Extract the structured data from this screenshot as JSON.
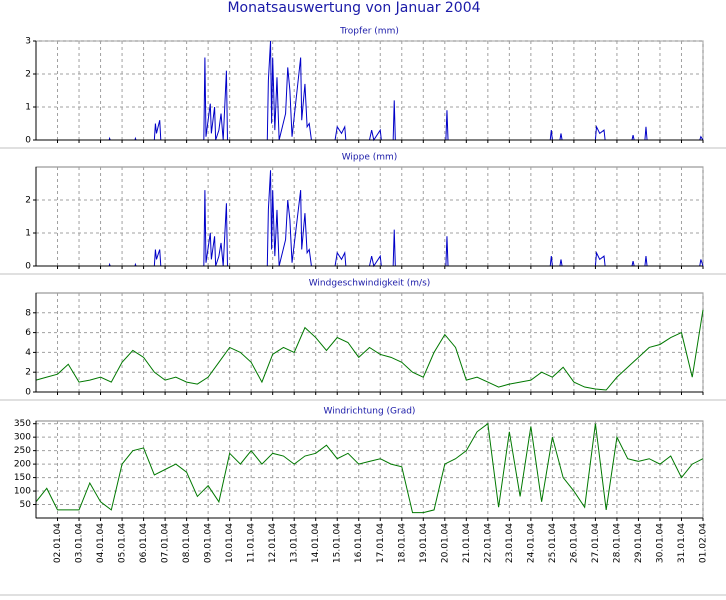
{
  "title": "Monatsauswertung von Januar 2004",
  "chart_data": [
    {
      "type": "line",
      "title": "Tropfer (mm)",
      "color": "#0000c8",
      "grid": true,
      "xlim": [
        1,
        32
      ],
      "xticks": [
        2,
        3,
        4,
        5,
        6,
        7,
        8,
        9,
        10,
        11,
        12,
        13,
        14,
        15,
        16,
        17,
        18,
        19,
        20,
        21,
        22,
        23,
        24,
        25,
        26,
        27,
        28,
        29,
        30,
        31,
        32
      ],
      "ylim": [
        0,
        3
      ],
      "yticks": [
        0,
        1,
        2,
        3
      ],
      "x": [
        1,
        4.4,
        4.42,
        4.45,
        5.6,
        5.62,
        5.65,
        6.5,
        6.55,
        6.6,
        6.75,
        6.8,
        8.8,
        8.85,
        8.9,
        9.1,
        9.15,
        9.3,
        9.35,
        9.5,
        9.6,
        9.7,
        9.85,
        9.9,
        11.75,
        11.8,
        11.9,
        11.95,
        12.0,
        12.1,
        12.2,
        12.3,
        12.6,
        12.7,
        12.8,
        12.9,
        13.3,
        13.35,
        13.5,
        13.6,
        13.7,
        13.8,
        14.9,
        15,
        15.2,
        15.35,
        15.4,
        16.5,
        16.6,
        16.7,
        17,
        17.05,
        17.6,
        17.65,
        17.7,
        20.05,
        20.1,
        20.15,
        24.9,
        24.95,
        25,
        25.35,
        25.4,
        25.45,
        27,
        27.05,
        27.2,
        27.4,
        27.45,
        28.7,
        28.75,
        28.8,
        29.3,
        29.35,
        29.4,
        31.85,
        31.9,
        32
      ],
      "values": [
        0,
        0,
        0.05,
        0,
        0,
        0.05,
        0,
        0,
        0.5,
        0.2,
        0.6,
        0,
        0,
        2.5,
        0.1,
        1.1,
        0.2,
        1.0,
        0,
        0.3,
        0.8,
        0,
        2.1,
        0,
        0,
        1.8,
        3.0,
        0.5,
        2.5,
        0.3,
        1.9,
        0,
        0.8,
        2.2,
        1.5,
        0.1,
        2.5,
        0.6,
        1.7,
        0.4,
        0.5,
        0,
        0,
        0.4,
        0.2,
        0.4,
        0,
        0,
        0.3,
        0,
        0.3,
        0,
        0,
        1.2,
        0,
        0,
        0.9,
        0,
        0,
        0.3,
        0,
        0,
        0.2,
        0,
        0,
        0.4,
        0.2,
        0.3,
        0,
        0,
        0.15,
        0,
        0,
        0.4,
        0,
        0,
        0.1,
        0
      ]
    },
    {
      "type": "line",
      "title": "Wippe (mm)",
      "color": "#0000c8",
      "grid": true,
      "xlim": [
        1,
        32
      ],
      "xticks": [
        2,
        3,
        4,
        5,
        6,
        7,
        8,
        9,
        10,
        11,
        12,
        13,
        14,
        15,
        16,
        17,
        18,
        19,
        20,
        21,
        22,
        23,
        24,
        25,
        26,
        27,
        28,
        29,
        30,
        31,
        32
      ],
      "ylim": [
        0,
        3
      ],
      "yticks": [
        0,
        1,
        2
      ],
      "x": [
        1,
        4.4,
        4.42,
        4.45,
        5.6,
        5.62,
        5.65,
        6.5,
        6.55,
        6.6,
        6.75,
        6.8,
        8.8,
        8.85,
        8.9,
        9.1,
        9.15,
        9.3,
        9.35,
        9.5,
        9.6,
        9.7,
        9.85,
        9.9,
        11.75,
        11.8,
        11.9,
        11.95,
        12.0,
        12.1,
        12.2,
        12.3,
        12.6,
        12.7,
        12.8,
        12.9,
        13.3,
        13.35,
        13.5,
        13.6,
        13.7,
        13.8,
        14.9,
        15,
        15.2,
        15.35,
        15.4,
        16.5,
        16.6,
        16.7,
        17,
        17.05,
        17.6,
        17.65,
        17.7,
        20.05,
        20.1,
        20.15,
        24.9,
        24.95,
        25,
        25.35,
        25.4,
        25.45,
        27,
        27.05,
        27.2,
        27.4,
        27.45,
        28.7,
        28.75,
        28.8,
        29.3,
        29.35,
        29.4,
        31.85,
        31.9,
        32
      ],
      "values": [
        0,
        0,
        0.05,
        0,
        0,
        0.05,
        0,
        0,
        0.5,
        0.2,
        0.5,
        0,
        0,
        2.3,
        0.1,
        1.0,
        0.2,
        0.9,
        0,
        0.3,
        0.7,
        0,
        1.9,
        0,
        0,
        1.7,
        2.9,
        0.5,
        2.3,
        0.3,
        1.7,
        0,
        0.8,
        2.0,
        1.4,
        0.1,
        2.3,
        0.5,
        1.6,
        0.4,
        0.5,
        0,
        0,
        0.4,
        0.2,
        0.4,
        0,
        0,
        0.3,
        0,
        0.3,
        0,
        0,
        1.1,
        0,
        0,
        0.9,
        0,
        0,
        0.3,
        0,
        0,
        0.2,
        0,
        0,
        0.4,
        0.2,
        0.3,
        0,
        0,
        0.15,
        0,
        0,
        0.3,
        0,
        0,
        0.2,
        0
      ]
    },
    {
      "type": "line",
      "title": "Windgeschwindigkeit (m/s)",
      "color": "#007800",
      "grid": true,
      "xlim": [
        1,
        32
      ],
      "xticks": [
        2,
        3,
        4,
        5,
        6,
        7,
        8,
        9,
        10,
        11,
        12,
        13,
        14,
        15,
        16,
        17,
        18,
        19,
        20,
        21,
        22,
        23,
        24,
        25,
        26,
        27,
        28,
        29,
        30,
        31,
        32
      ],
      "ylim": [
        0,
        10
      ],
      "yticks": [
        0,
        2,
        4,
        6,
        8
      ],
      "x": [
        1,
        1.5,
        2,
        2.5,
        3,
        3.5,
        4,
        4.5,
        5,
        5.5,
        6,
        6.5,
        7,
        7.5,
        8,
        8.5,
        9,
        9.5,
        10,
        10.5,
        11,
        11.5,
        12,
        12.5,
        13,
        13.5,
        14,
        14.5,
        15,
        15.5,
        16,
        16.5,
        17,
        17.5,
        18,
        18.5,
        19,
        19.5,
        20,
        20.5,
        21,
        21.5,
        22,
        22.5,
        23,
        23.5,
        24,
        24.5,
        25,
        25.5,
        26,
        26.5,
        27,
        27.5,
        28,
        28.5,
        29,
        29.5,
        30,
        30.5,
        31,
        31.5,
        32
      ],
      "values": [
        1.2,
        1.5,
        1.8,
        2.8,
        1.0,
        1.2,
        1.5,
        1.0,
        3.0,
        4.2,
        3.5,
        2.0,
        1.2,
        1.5,
        1.0,
        0.8,
        1.5,
        3.0,
        4.5,
        4.0,
        3.0,
        1.0,
        3.8,
        4.5,
        4.0,
        6.5,
        5.5,
        4.2,
        5.5,
        5.0,
        3.5,
        4.5,
        3.8,
        3.5,
        3.0,
        2.0,
        1.5,
        4.0,
        5.8,
        4.5,
        1.2,
        1.5,
        1.0,
        0.5,
        0.8,
        1.0,
        1.2,
        2.0,
        1.5,
        2.5,
        1.0,
        0.5,
        0.3,
        0.2,
        1.5,
        2.5,
        3.5,
        4.5,
        4.8,
        5.5,
        6.0,
        1.5,
        8.3
      ]
    },
    {
      "type": "line",
      "title": "Windrichtung (Grad)",
      "color": "#007800",
      "grid": true,
      "xlim": [
        1,
        32
      ],
      "xticks": [
        {
          "value": 2,
          "label": "02.01.04"
        },
        {
          "value": 3,
          "label": "03.01.04"
        },
        {
          "value": 4,
          "label": "04.01.04"
        },
        {
          "value": 5,
          "label": "05.01.04"
        },
        {
          "value": 6,
          "label": "06.01.04"
        },
        {
          "value": 7,
          "label": "07.01.04"
        },
        {
          "value": 8,
          "label": "08.01.04"
        },
        {
          "value": 9,
          "label": "09.01.04"
        },
        {
          "value": 10,
          "label": "10.01.04"
        },
        {
          "value": 11,
          "label": "11.01.04"
        },
        {
          "value": 12,
          "label": "12.01.04"
        },
        {
          "value": 13,
          "label": "13.01.04"
        },
        {
          "value": 14,
          "label": "14.01.04"
        },
        {
          "value": 15,
          "label": "15.01.04"
        },
        {
          "value": 16,
          "label": "16.01.04"
        },
        {
          "value": 17,
          "label": "17.01.04"
        },
        {
          "value": 18,
          "label": "18.01.04"
        },
        {
          "value": 19,
          "label": "19.01.04"
        },
        {
          "value": 20,
          "label": "20.01.04"
        },
        {
          "value": 21,
          "label": "21.01.04"
        },
        {
          "value": 22,
          "label": "22.01.04"
        },
        {
          "value": 23,
          "label": "23.01.04"
        },
        {
          "value": 24,
          "label": "24.01.04"
        },
        {
          "value": 25,
          "label": "25.01.04"
        },
        {
          "value": 26,
          "label": "26.01.04"
        },
        {
          "value": 27,
          "label": "27.01.04"
        },
        {
          "value": 28,
          "label": "28.01.04"
        },
        {
          "value": 29,
          "label": "29.01.04"
        },
        {
          "value": 30,
          "label": "30.01.04"
        },
        {
          "value": 31,
          "label": "31.01.04"
        },
        {
          "value": 32,
          "label": "01.02.04"
        }
      ],
      "ylim": [
        0,
        360
      ],
      "yticks": [
        50,
        100,
        150,
        200,
        250,
        300,
        350
      ],
      "x": [
        1,
        1.5,
        2,
        2.5,
        3,
        3.5,
        4,
        4.5,
        5,
        5.5,
        6,
        6.5,
        7,
        7.5,
        8,
        8.5,
        9,
        9.5,
        10,
        10.5,
        11,
        11.5,
        12,
        12.5,
        13,
        13.5,
        14,
        14.5,
        15,
        15.5,
        16,
        16.5,
        17,
        17.5,
        18,
        18.5,
        19,
        19.5,
        20,
        20.5,
        21,
        21.5,
        22,
        22.5,
        23,
        23.5,
        24,
        24.5,
        25,
        25.5,
        26,
        26.5,
        27,
        27.5,
        28,
        28.5,
        29,
        29.5,
        30,
        30.5,
        31,
        31.5,
        32
      ],
      "values": [
        60,
        110,
        30,
        30,
        30,
        130,
        60,
        30,
        200,
        250,
        260,
        160,
        180,
        200,
        170,
        80,
        120,
        60,
        240,
        200,
        250,
        200,
        240,
        230,
        200,
        230,
        240,
        270,
        220,
        240,
        200,
        210,
        220,
        200,
        190,
        20,
        20,
        30,
        200,
        220,
        250,
        320,
        350,
        40,
        320,
        80,
        340,
        60,
        300,
        150,
        100,
        40,
        350,
        30,
        300,
        220,
        210,
        220,
        200,
        230,
        150,
        200,
        220
      ]
    }
  ]
}
